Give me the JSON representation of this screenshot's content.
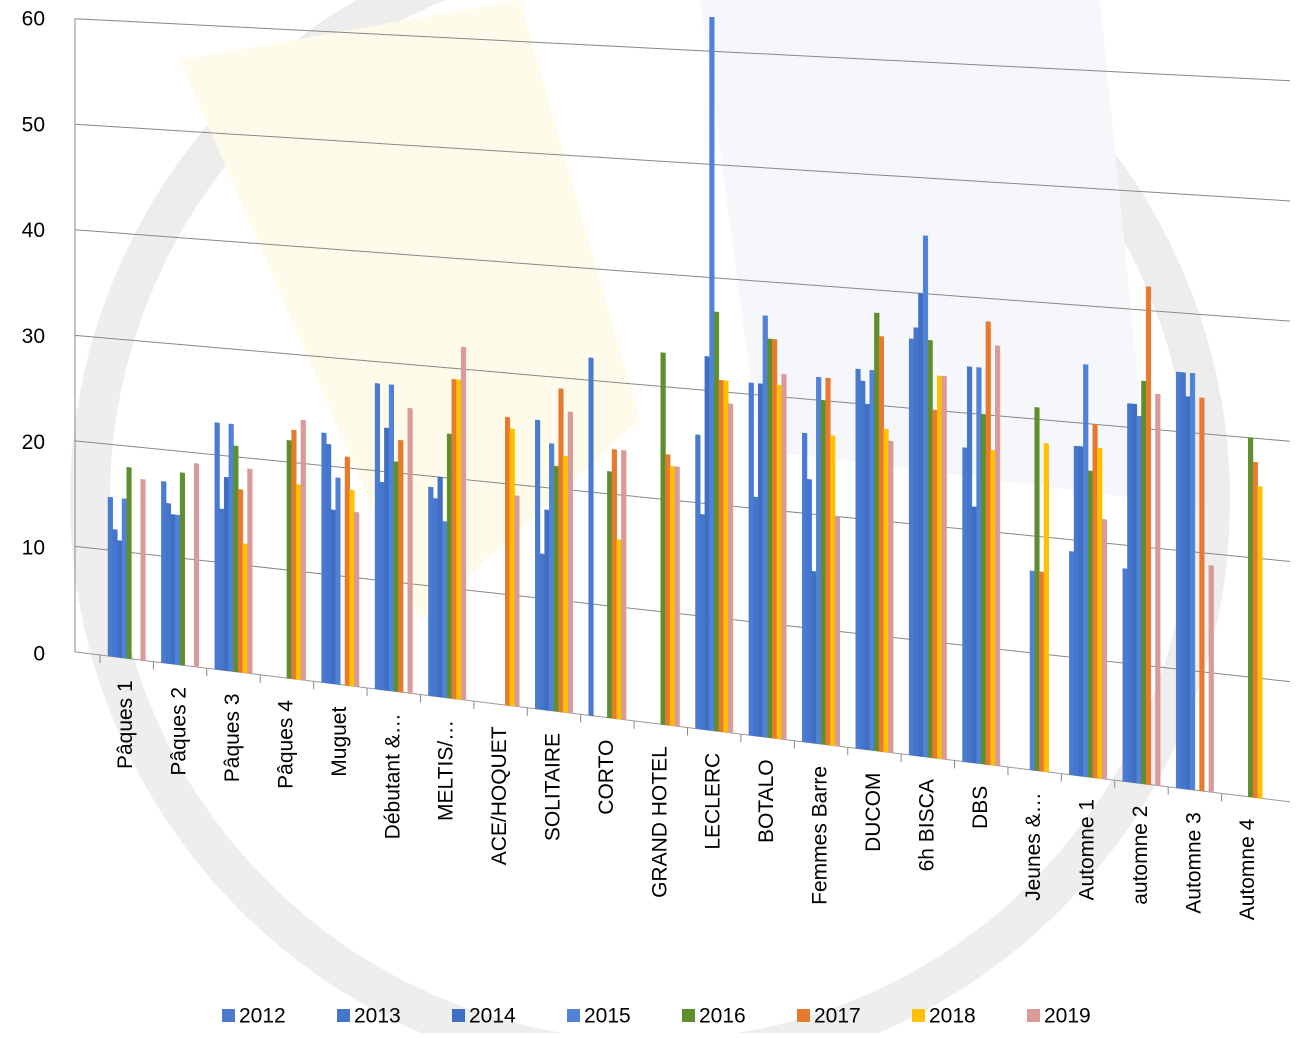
{
  "chart_data": {
    "type": "bar",
    "categories": [
      "Pâques 1",
      "Pâques 2",
      "Pâques 3",
      "Pâques 4",
      "Muguet",
      "Débutant &…",
      "MELTIS/…",
      "ACE/HOQUET",
      "SOLITAIRE",
      "CORTO",
      "GRAND HOTEL",
      "LECLERC",
      "BOTALO",
      "Femmes Barre",
      "DUCOM",
      "6h BISCA",
      "DBS",
      "Jeunes &…",
      "Automne 1",
      "automne 2",
      "Automne 3",
      "Automne 4"
    ],
    "series": [
      {
        "name": "2012",
        "color": "#4a7bd0",
        "values": [
          15,
          17,
          23,
          null,
          23,
          28,
          19,
          null,
          26,
          32,
          null,
          26,
          31,
          27,
          33,
          36,
          27,
          null,
          19,
          18,
          35,
          null
        ]
      },
      {
        "name": "2013",
        "color": "#4576cc",
        "values": [
          12,
          15,
          15,
          null,
          22,
          19,
          18,
          null,
          14,
          null,
          null,
          19,
          21,
          23,
          32,
          37,
          34,
          null,
          28,
          32,
          35,
          null
        ]
      },
      {
        "name": "2014",
        "color": "#3f6fc4",
        "values": [
          11,
          14,
          18,
          null,
          16,
          24,
          20,
          null,
          18,
          null,
          null,
          33,
          31,
          15,
          30,
          40,
          22,
          null,
          28,
          32,
          33,
          null
        ]
      },
      {
        "name": "2015",
        "color": "#5083d8",
        "values": [
          15,
          14,
          23,
          null,
          19,
          28,
          16,
          null,
          24,
          null,
          null,
          63,
          37,
          32,
          33,
          45,
          34,
          17,
          35,
          31,
          35,
          null
        ]
      },
      {
        "name": "2016",
        "color": "#5e8f2e",
        "values": [
          18,
          18,
          21,
          22,
          null,
          21,
          24,
          null,
          22,
          22,
          33,
          37,
          35,
          30,
          38,
          36,
          30,
          31,
          26,
          34,
          null,
          30
        ]
      },
      {
        "name": "2017",
        "color": "#e87a2e",
        "values": [
          null,
          null,
          17,
          23,
          21,
          23,
          29,
          26,
          29,
          24,
          24,
          31,
          35,
          32,
          36,
          30,
          38,
          17,
          30,
          42,
          33,
          28
        ]
      },
      {
        "name": "2018",
        "color": "#ffc000",
        "values": [
          null,
          null,
          12,
          18,
          18,
          null,
          29,
          25,
          23,
          16,
          23,
          31,
          31,
          27,
          28,
          33,
          27,
          28,
          28,
          null,
          null,
          26
        ]
      },
      {
        "name": "2019",
        "color": "#d99a9a",
        "values": [
          17,
          19,
          19,
          24,
          16,
          26,
          32,
          19,
          27,
          24,
          23,
          29,
          32,
          20,
          27,
          33,
          36,
          null,
          22,
          33,
          19,
          null
        ]
      }
    ],
    "ylim": [
      0,
      60
    ],
    "yticks": [
      0,
      10,
      20,
      30,
      40,
      50,
      60
    ],
    "grid": true
  }
}
